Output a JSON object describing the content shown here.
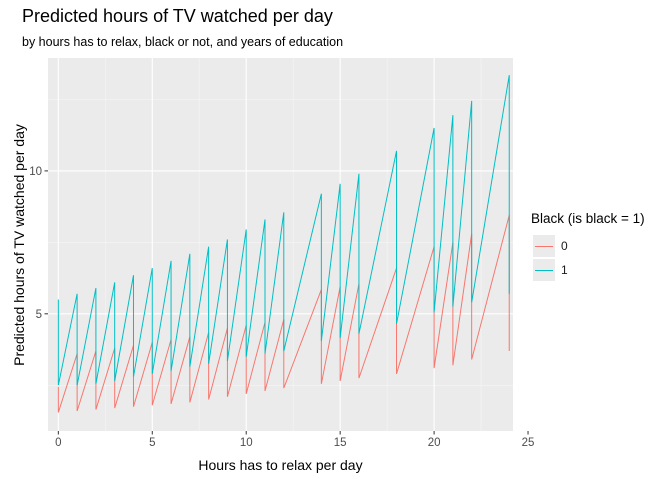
{
  "chart_data": {
    "type": "line",
    "title": "Predicted hours of TV watched per day",
    "subtitle": "by hours has to relax, black or not, and years of education",
    "xlabel": "Hours has to relax per day",
    "ylabel": "Predicted hours of TV watched per day",
    "xlim": [
      -0.55,
      24.2
    ],
    "ylim": [
      0.9,
      13.95
    ],
    "x_ticks": [
      0,
      5,
      10,
      15,
      20,
      25
    ],
    "y_ticks": [
      5,
      10
    ],
    "grid": true,
    "legend": {
      "title": "Black (is black = 1)",
      "position": "right"
    },
    "series": [
      {
        "name": "0",
        "color": "#F8766D",
        "points": [
          [
            0,
            2.45
          ],
          [
            0,
            1.55
          ],
          [
            1,
            3.6
          ],
          [
            1,
            1.6
          ],
          [
            2,
            3.7
          ],
          [
            2,
            1.65
          ],
          [
            3,
            3.8
          ],
          [
            3,
            1.7
          ],
          [
            4,
            3.9
          ],
          [
            4,
            1.75
          ],
          [
            5,
            4.0
          ],
          [
            5,
            1.8
          ],
          [
            6,
            4.1
          ],
          [
            6,
            1.85
          ],
          [
            7,
            4.2
          ],
          [
            7,
            1.9
          ],
          [
            8,
            4.35
          ],
          [
            8,
            2.0
          ],
          [
            9,
            4.5
          ],
          [
            9,
            2.1
          ],
          [
            10,
            4.6
          ],
          [
            10,
            2.2
          ],
          [
            11,
            4.7
          ],
          [
            11,
            2.3
          ],
          [
            12,
            4.8
          ],
          [
            12,
            2.4
          ],
          [
            14,
            5.85
          ],
          [
            14,
            2.55
          ],
          [
            15,
            5.95
          ],
          [
            15,
            2.65
          ],
          [
            16,
            6.05
          ],
          [
            16,
            2.75
          ],
          [
            18,
            6.6
          ],
          [
            18,
            2.9
          ],
          [
            20,
            7.35
          ],
          [
            20,
            3.1
          ],
          [
            21,
            7.5
          ],
          [
            21,
            3.2
          ],
          [
            22,
            7.8
          ],
          [
            22,
            3.4
          ],
          [
            24,
            8.45
          ],
          [
            24,
            3.7
          ]
        ]
      },
      {
        "name": "1",
        "color": "#00BFC4",
        "points": [
          [
            0,
            5.5
          ],
          [
            0,
            2.5
          ],
          [
            1,
            5.7
          ],
          [
            1,
            2.5
          ],
          [
            2,
            5.9
          ],
          [
            2,
            2.55
          ],
          [
            3,
            6.1
          ],
          [
            3,
            2.65
          ],
          [
            4,
            6.35
          ],
          [
            4,
            2.8
          ],
          [
            5,
            6.6
          ],
          [
            5,
            2.9
          ],
          [
            6,
            6.85
          ],
          [
            6,
            3.0
          ],
          [
            7,
            7.1
          ],
          [
            7,
            3.15
          ],
          [
            8,
            7.35
          ],
          [
            8,
            3.25
          ],
          [
            9,
            7.6
          ],
          [
            9,
            3.35
          ],
          [
            10,
            7.95
          ],
          [
            10,
            3.5
          ],
          [
            11,
            8.3
          ],
          [
            11,
            3.6
          ],
          [
            12,
            8.55
          ],
          [
            12,
            3.7
          ],
          [
            14,
            9.2
          ],
          [
            14,
            4.05
          ],
          [
            15,
            9.55
          ],
          [
            15,
            4.15
          ],
          [
            16,
            9.9
          ],
          [
            16,
            4.3
          ],
          [
            18,
            10.7
          ],
          [
            18,
            4.65
          ],
          [
            20,
            11.5
          ],
          [
            20,
            5.05
          ],
          [
            21,
            11.95
          ],
          [
            21,
            5.25
          ],
          [
            22,
            12.45
          ],
          [
            22,
            5.4
          ],
          [
            24,
            13.35
          ],
          [
            24,
            5.7
          ]
        ]
      }
    ]
  }
}
